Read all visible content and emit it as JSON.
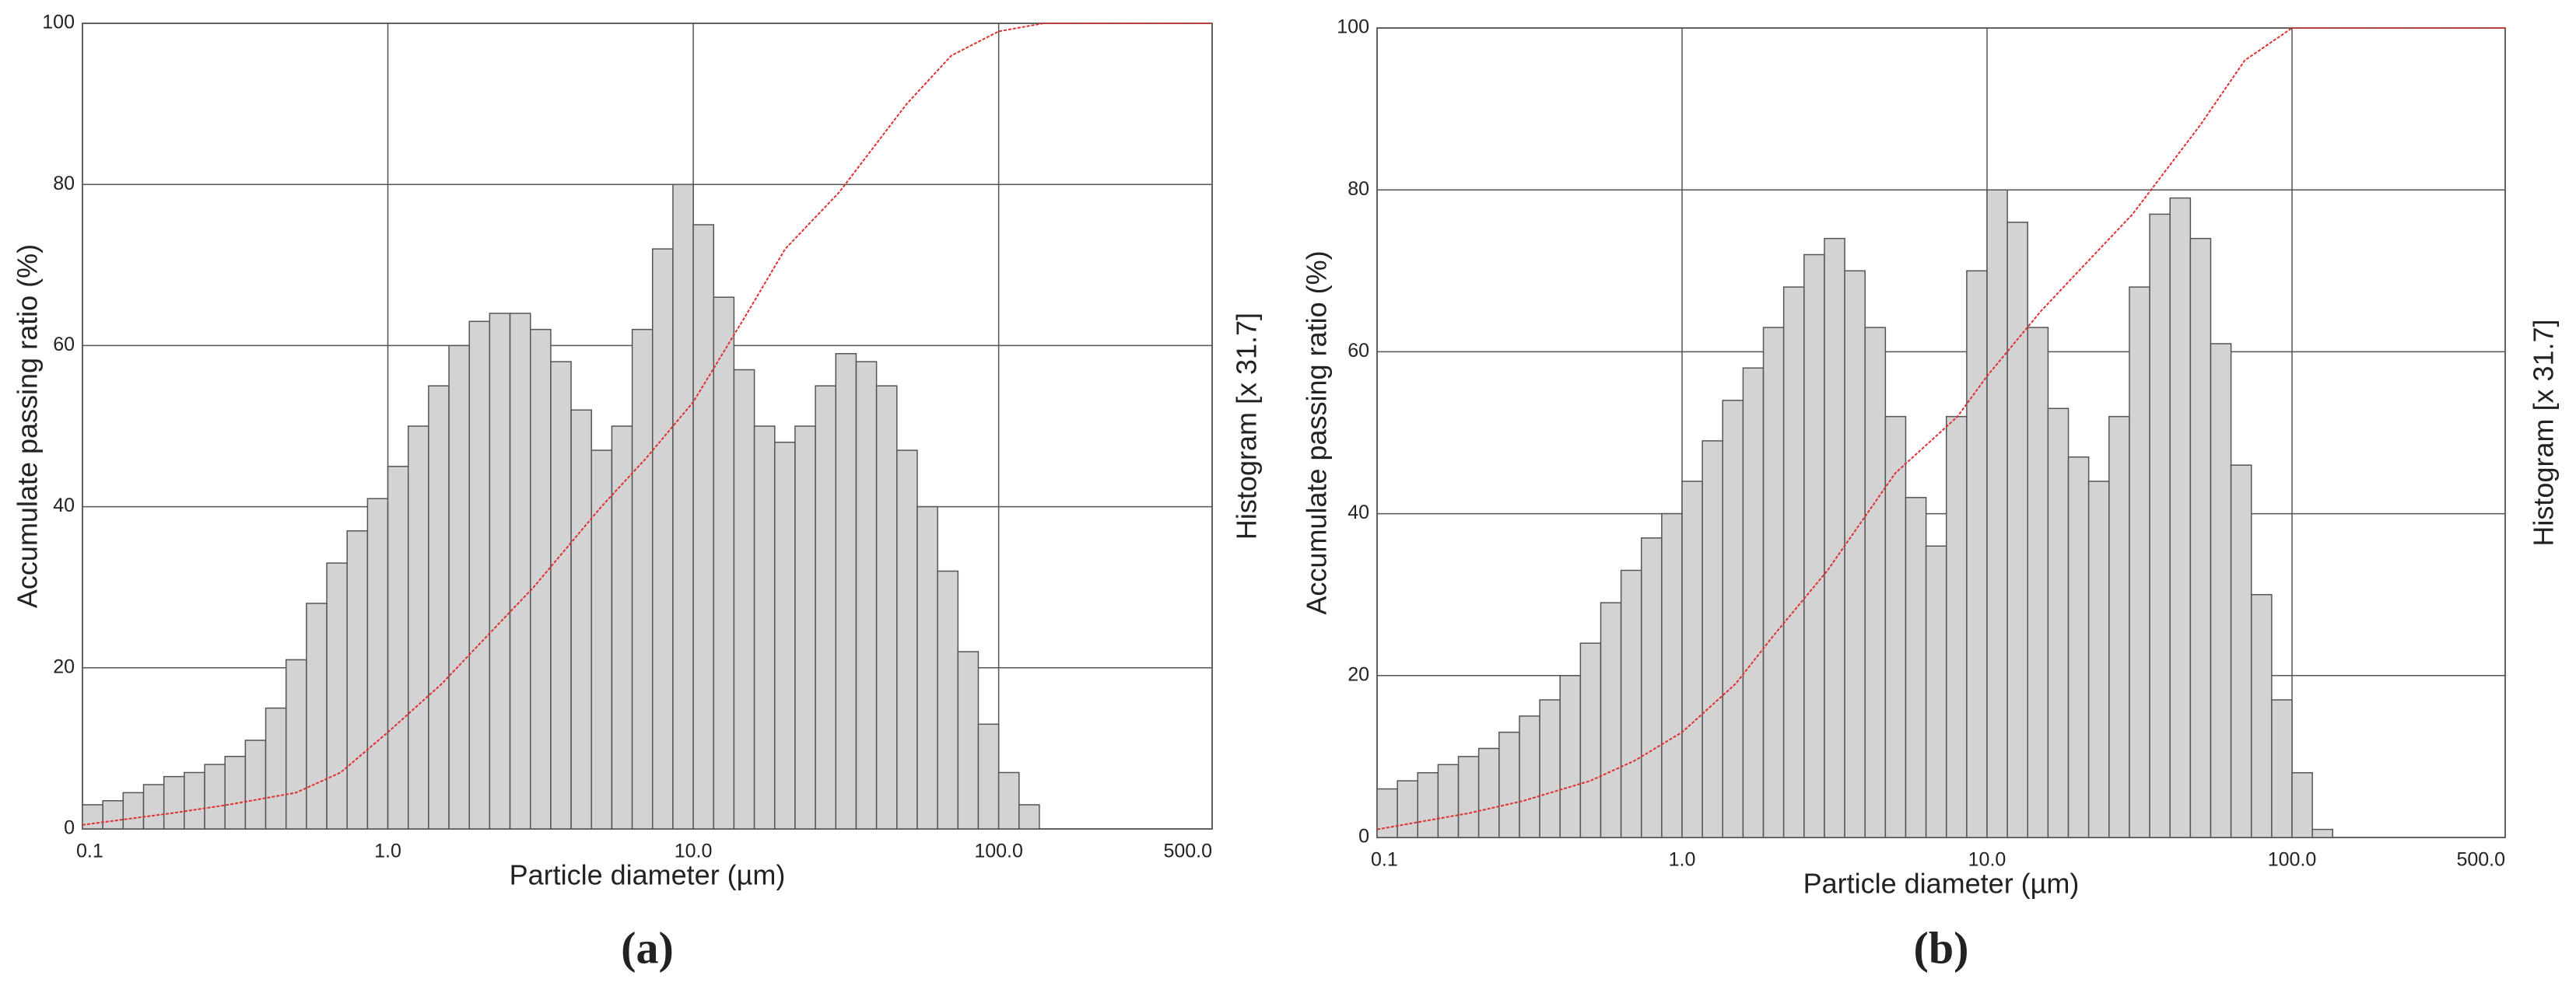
{
  "chart_data": [
    {
      "type": "histogram",
      "caption": "(a)",
      "x_label": "Particle diameter (µm)",
      "y_label": "Accumulate passing ratio (%)",
      "y2_label": "Histogram [x 31.7]",
      "xlim": [
        0.1,
        500
      ],
      "log_x": true,
      "xticks": [
        0.1,
        {
          "value": 1,
          "label": "1.0"
        },
        {
          "value": 10,
          "label": "10.0"
        },
        {
          "value": 100,
          "label": "100.0"
        },
        {
          "value": 500,
          "label": "500.0"
        }
      ],
      "ylim": [
        0,
        100
      ],
      "yticks": [
        0,
        20,
        40,
        60,
        80,
        100
      ],
      "grid": true,
      "color": "#d3d3d3",
      "bins": [
        0.1,
        0.1166,
        0.1359,
        0.1585,
        0.1848,
        0.2154,
        0.2512,
        0.2929,
        0.3415,
        0.3981,
        0.4642,
        0.5412,
        0.631,
        0.7356,
        0.8577,
        1.0,
        1.166,
        1.359,
        1.585,
        1.848,
        2.154,
        2.512,
        2.929,
        3.415,
        3.981,
        4.642,
        5.412,
        6.31,
        7.356,
        8.577,
        10,
        11.66,
        13.59,
        15.85,
        18.48,
        21.54,
        25.12,
        29.29,
        34.15,
        39.81,
        46.42,
        54.12,
        63.1,
        73.56,
        85.77,
        100,
        116.6,
        135.9
      ],
      "values": [
        3,
        3.5,
        4.5,
        5.5,
        6.5,
        7,
        8,
        9,
        11,
        15,
        21,
        28,
        33,
        37,
        41,
        45,
        50,
        55,
        60,
        63,
        64,
        64,
        62,
        58,
        52,
        47,
        50,
        62,
        72,
        80,
        75,
        66,
        57,
        50,
        48,
        50,
        55,
        59,
        58,
        55,
        47,
        40,
        32,
        22,
        13,
        7,
        3
      ],
      "line": {
        "color": "#e03030",
        "x": [
          0.1,
          0.2,
          0.3,
          0.5,
          0.7,
          1.0,
          1.5,
          2,
          3,
          5,
          7,
          10,
          15,
          20,
          30,
          50,
          70,
          100,
          140,
          500
        ],
        "values": [
          0.5,
          2,
          3,
          4.5,
          7,
          12,
          18,
          23,
          30,
          40,
          46,
          53,
          64,
          72,
          79,
          90,
          96,
          99,
          100,
          100
        ]
      }
    },
    {
      "type": "histogram",
      "caption": "(b)",
      "x_label": "Particle diameter (µm)",
      "y_label": "Accumulate passing ratio (%)",
      "y2_label": "Histogram [x 31.7]",
      "xlim": [
        0.1,
        500
      ],
      "log_x": true,
      "xticks": [
        0.1,
        {
          "value": 1,
          "label": "1.0"
        },
        {
          "value": 10,
          "label": "10.0"
        },
        {
          "value": 100,
          "label": "100.0"
        },
        {
          "value": 500,
          "label": "500.0"
        }
      ],
      "ylim": [
        0,
        100
      ],
      "yticks": [
        0,
        20,
        40,
        60,
        80,
        100
      ],
      "grid": true,
      "color": "#d3d3d3",
      "bins": [
        0.1,
        0.1166,
        0.1359,
        0.1585,
        0.1848,
        0.2154,
        0.2512,
        0.2929,
        0.3415,
        0.3981,
        0.4642,
        0.5412,
        0.631,
        0.7356,
        0.8577,
        1.0,
        1.166,
        1.359,
        1.585,
        1.848,
        2.154,
        2.512,
        2.929,
        3.415,
        3.981,
        4.642,
        5.412,
        6.31,
        7.356,
        8.577,
        10,
        11.66,
        13.59,
        15.85,
        18.48,
        21.54,
        25.12,
        29.29,
        34.15,
        39.81,
        46.42,
        54.12,
        63.1,
        73.56,
        85.77,
        100,
        116.6,
        135.9
      ],
      "values": [
        6,
        7,
        8,
        9,
        10,
        11,
        13,
        15,
        17,
        20,
        24,
        29,
        33,
        37,
        40,
        44,
        49,
        54,
        58,
        63,
        68,
        72,
        74,
        70,
        63,
        52,
        42,
        36,
        52,
        70,
        80,
        76,
        63,
        53,
        47,
        44,
        52,
        68,
        77,
        79,
        74,
        61,
        46,
        30,
        17,
        8,
        1
      ],
      "line": {
        "color": "#e03030",
        "x": [
          0.1,
          0.2,
          0.3,
          0.5,
          0.7,
          1,
          1.5,
          2,
          3,
          5,
          7,
          8,
          10,
          15,
          20,
          30,
          50,
          70,
          100,
          500
        ],
        "values": [
          1,
          3,
          4.5,
          7,
          9.5,
          13,
          19,
          25,
          33,
          45,
          50,
          52,
          57,
          65,
          70,
          77,
          88,
          96,
          100,
          100
        ]
      }
    }
  ]
}
